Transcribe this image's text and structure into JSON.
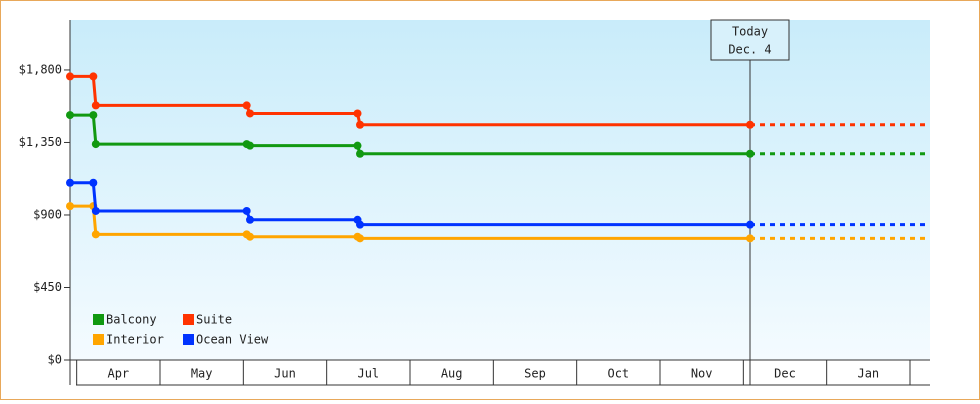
{
  "chart_data": {
    "type": "line",
    "categories": [
      "Apr",
      "May",
      "Jun",
      "Jul",
      "Aug",
      "Sep",
      "Oct",
      "Nov",
      "Dec",
      "Jan"
    ],
    "x": [
      -0.08,
      0.2,
      0.23,
      2.04,
      2.08,
      3.37,
      3.4,
      8.08
    ],
    "xlim": [
      -0.08,
      10.24
    ],
    "ylim": [
      0,
      2110
    ],
    "yticks": [
      {
        "value": 0,
        "label": "$0"
      },
      {
        "value": 450,
        "label": "$450"
      },
      {
        "value": 900,
        "label": "$900"
      },
      {
        "value": 1350,
        "label": "$1,350"
      },
      {
        "value": 1800,
        "label": "$1,800"
      }
    ],
    "series": [
      {
        "name": "Balcony",
        "color": "#119911",
        "values": [
          1520,
          1520,
          1340,
          1340,
          1330,
          1330,
          1280,
          1280
        ]
      },
      {
        "name": "Suite",
        "color": "#ff3300",
        "values": [
          1760,
          1760,
          1580,
          1580,
          1530,
          1530,
          1460,
          1460
        ]
      },
      {
        "name": "Interior",
        "color": "#ffa500",
        "values": [
          955,
          955,
          780,
          780,
          765,
          765,
          755,
          755
        ]
      },
      {
        "name": "Ocean View",
        "color": "#0033ff",
        "values": [
          1100,
          1100,
          925,
          925,
          870,
          870,
          840,
          840
        ]
      }
    ],
    "today": {
      "x": 8.08,
      "label": [
        "Today",
        "Dec. 4"
      ]
    },
    "legend": "lower left"
  }
}
